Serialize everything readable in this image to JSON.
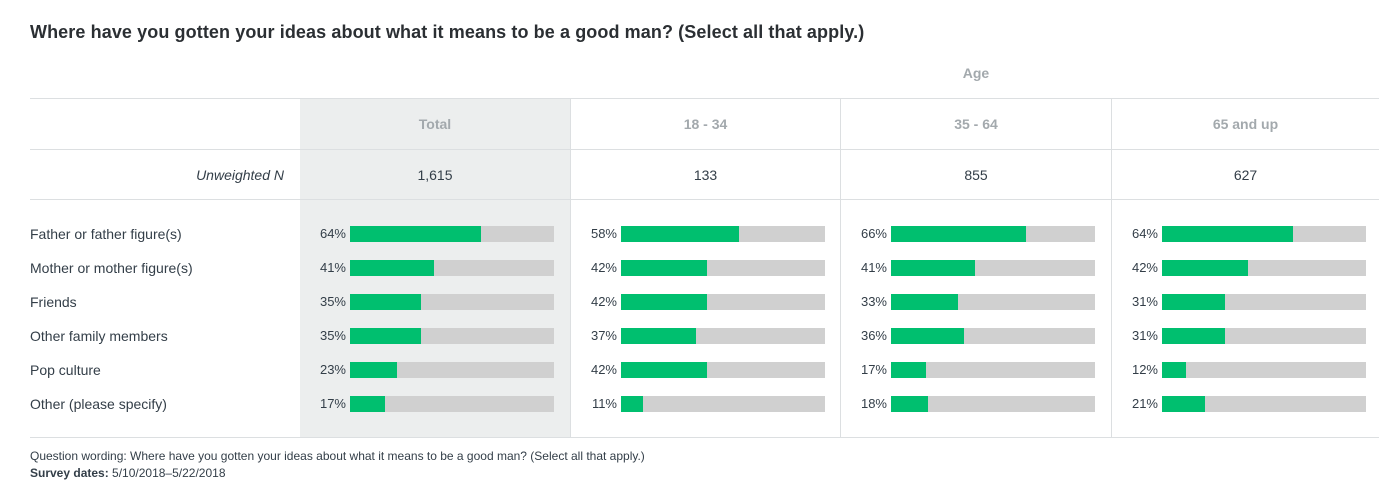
{
  "title": "Where have you gotten your ideas about what it means to be a good man? (Select all that apply.)",
  "group_label": "Age",
  "colors": {
    "bar": "#00bf6f",
    "track": "#d0d0d0",
    "total_bg": "#eceeee"
  },
  "columns": [
    {
      "label": "Total",
      "n": "1,615"
    },
    {
      "label": "18 - 34",
      "n": "133"
    },
    {
      "label": "35 - 64",
      "n": "855"
    },
    {
      "label": "65 and up",
      "n": "627"
    }
  ],
  "n_label": "Unweighted N",
  "chart_data": {
    "type": "bar",
    "title": "Where have you gotten your ideas about what it means to be a good man? (Select all that apply.)",
    "categories": [
      "Father or father figure(s)",
      "Mother or mother figure(s)",
      "Friends",
      "Other family members",
      "Pop culture",
      "Other (please specify)"
    ],
    "series": [
      {
        "name": "Total",
        "values": [
          64,
          41,
          35,
          35,
          23,
          17
        ]
      },
      {
        "name": "18 - 34",
        "values": [
          58,
          42,
          42,
          37,
          42,
          11
        ]
      },
      {
        "name": "35 - 64",
        "values": [
          66,
          41,
          33,
          36,
          17,
          18
        ]
      },
      {
        "name": "65 and up",
        "values": [
          64,
          42,
          31,
          31,
          12,
          21
        ]
      }
    ],
    "value_suffix": "%",
    "ylim": [
      0,
      100
    ]
  },
  "footnote": {
    "wording": "Question wording: Where have you gotten your ideas about what it means to be a good man? (Select all that apply.)",
    "dates_label": "Survey dates:",
    "dates_value": "5/10/2018–5/22/2018"
  }
}
